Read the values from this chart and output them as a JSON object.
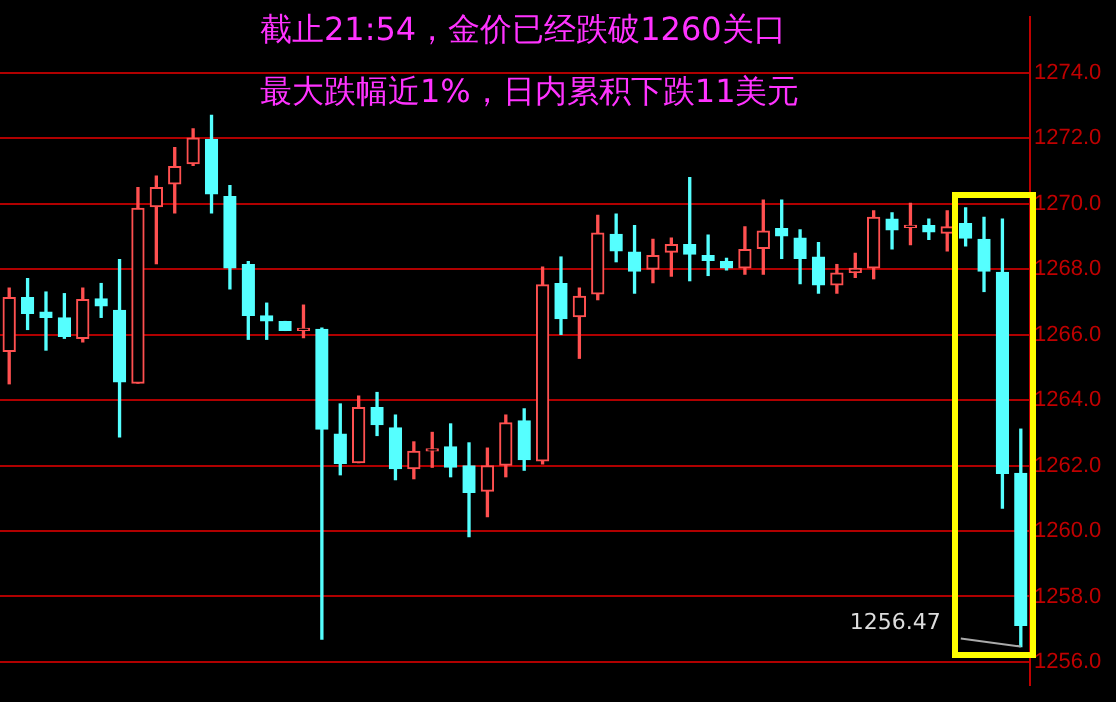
{
  "chart_data": {
    "type": "candlestick",
    "annotations": [
      "截止21:54，金价已经跌破1260关口",
      "最大跌幅近1%，日内累积下跌11美元",
      "1256.47"
    ],
    "categories": [
      null,
      null,
      null,
      null,
      null,
      null,
      null,
      null,
      null,
      null,
      null,
      null,
      null,
      null,
      null,
      null,
      null,
      null,
      null,
      null,
      null,
      null,
      null,
      null,
      null,
      null,
      null,
      null,
      null,
      null,
      null,
      null,
      null,
      null,
      null,
      null,
      null,
      null,
      null,
      null,
      null,
      null,
      null,
      null,
      null,
      null,
      null,
      null,
      null,
      null,
      null,
      null,
      null,
      null,
      null,
      null
    ],
    "ohlc": [
      [
        1265.49,
        1267.42,
        1264.5,
        1267.13
      ],
      [
        1267.13,
        1267.71,
        1266.16,
        1266.65
      ],
      [
        1266.69,
        1267.3,
        1265.53,
        1266.53
      ],
      [
        1266.51,
        1267.25,
        1265.89,
        1265.95
      ],
      [
        1265.89,
        1267.42,
        1265.78,
        1267.07
      ],
      [
        1267.09,
        1267.56,
        1266.53,
        1266.88
      ],
      [
        1266.74,
        1268.29,
        1262.88,
        1264.56
      ],
      [
        1264.52,
        1270.49,
        1264.52,
        1269.86
      ],
      [
        1269.91,
        1270.84,
        1268.17,
        1270.49
      ],
      [
        1270.61,
        1271.71,
        1269.72,
        1271.13
      ],
      [
        1271.23,
        1272.29,
        1271.17,
        1272.0
      ],
      [
        1271.96,
        1272.7,
        1269.72,
        1270.3
      ],
      [
        1270.22,
        1270.55,
        1267.4,
        1268.04
      ],
      [
        1268.14,
        1268.23,
        1265.86,
        1266.59
      ],
      [
        1266.57,
        1266.96,
        1265.86,
        1266.42
      ],
      [
        1266.4,
        1266.4,
        1266.13,
        1266.13
      ],
      [
        1266.13,
        1266.9,
        1265.91,
        1266.15
      ],
      [
        1266.16,
        1266.2,
        1256.7,
        1263.11
      ],
      [
        1262.96,
        1263.88,
        1261.72,
        1262.07
      ],
      [
        1262.09,
        1264.12,
        1262.09,
        1263.77
      ],
      [
        1263.77,
        1264.23,
        1262.92,
        1263.25
      ],
      [
        1263.15,
        1263.54,
        1261.57,
        1261.91
      ],
      [
        1261.91,
        1262.72,
        1261.6,
        1262.43
      ],
      [
        1262.45,
        1263.01,
        1261.95,
        1262.47
      ],
      [
        1262.57,
        1263.27,
        1261.66,
        1261.95
      ],
      [
        1261.99,
        1262.69,
        1259.83,
        1261.18
      ],
      [
        1261.22,
        1262.53,
        1260.44,
        1261.99
      ],
      [
        1262.01,
        1263.54,
        1261.66,
        1263.3
      ],
      [
        1263.36,
        1263.73,
        1261.86,
        1262.18
      ],
      [
        1262.14,
        1268.06,
        1262.05,
        1267.52
      ],
      [
        1267.56,
        1268.37,
        1266.01,
        1266.49
      ],
      [
        1266.55,
        1267.42,
        1265.28,
        1267.17
      ],
      [
        1267.25,
        1269.64,
        1267.07,
        1269.1
      ],
      [
        1269.06,
        1269.68,
        1268.23,
        1268.56
      ],
      [
        1268.52,
        1269.33,
        1267.27,
        1267.94
      ],
      [
        1268.0,
        1268.91,
        1267.59,
        1268.41
      ],
      [
        1268.52,
        1268.95,
        1267.79,
        1268.75
      ],
      [
        1268.75,
        1270.8,
        1267.65,
        1268.46
      ],
      [
        1268.41,
        1269.04,
        1267.81,
        1268.27
      ],
      [
        1268.23,
        1268.33,
        1267.98,
        1268.04
      ],
      [
        1268.04,
        1269.29,
        1267.85,
        1268.6
      ],
      [
        1268.64,
        1270.11,
        1267.85,
        1269.16
      ],
      [
        1269.24,
        1270.11,
        1268.33,
        1269.02
      ],
      [
        1268.95,
        1269.2,
        1267.56,
        1268.33
      ],
      [
        1268.37,
        1268.81,
        1267.27,
        1267.52
      ],
      [
        1267.52,
        1268.14,
        1267.27,
        1267.88
      ],
      [
        1267.9,
        1268.48,
        1267.75,
        1268.02
      ],
      [
        1268.04,
        1269.78,
        1267.71,
        1269.58
      ],
      [
        1269.53,
        1269.72,
        1268.62,
        1269.2
      ],
      [
        1269.28,
        1270.01,
        1268.75,
        1269.3
      ],
      [
        1269.33,
        1269.53,
        1268.91,
        1269.14
      ],
      [
        1269.1,
        1269.78,
        1268.56,
        1269.29
      ],
      [
        1269.39,
        1269.87,
        1268.71,
        1268.95
      ],
      [
        1268.91,
        1269.58,
        1267.32,
        1267.94
      ],
      [
        1267.9,
        1269.53,
        1260.7,
        1261.76
      ],
      [
        1261.76,
        1263.11,
        1256.47,
        1257.12
      ]
    ],
    "colors": [
      "#ff5050",
      "#55ffff",
      "#55ffff",
      "#55ffff",
      "#ff5050",
      "#55ffff",
      "#55ffff",
      "#ff5050",
      "#ff5050",
      "#ff5050",
      "#ff5050",
      "#55ffff",
      "#55ffff",
      "#55ffff",
      "#55ffff",
      "#55ffff",
      "#ff5050",
      "#55ffff",
      "#55ffff",
      "#ff5050",
      "#55ffff",
      "#55ffff",
      "#ff5050",
      "#ff5050",
      "#55ffff",
      "#55ffff",
      "#ff5050",
      "#ff5050",
      "#55ffff",
      "#ff5050",
      "#55ffff",
      "#ff5050",
      "#ff5050",
      "#55ffff",
      "#55ffff",
      "#ff5050",
      "#ff5050",
      "#55ffff",
      "#55ffff",
      "#55ffff",
      "#ff5050",
      "#ff5050",
      "#55ffff",
      "#55ffff",
      "#55ffff",
      "#ff5050",
      "#ff5050",
      "#ff5050",
      "#55ffff",
      "#ff5050",
      "#55ffff",
      "#ff5050",
      "#55ffff",
      "#55ffff",
      "#55ffff",
      "#55ffff"
    ],
    "ylim": [
      1255.3,
      1275.7
    ],
    "yticks": [
      {
        "value": 1256,
        "label": "1256.0"
      },
      {
        "value": 1258,
        "label": "1258.0"
      },
      {
        "value": 1260,
        "label": "1260.0"
      },
      {
        "value": 1262,
        "label": "1262.0"
      },
      {
        "value": 1264,
        "label": "1264.0"
      },
      {
        "value": 1266,
        "label": "1266.0"
      },
      {
        "value": 1268,
        "label": "1268.0"
      },
      {
        "value": 1270,
        "label": "1270.0"
      },
      {
        "value": 1272,
        "label": "1272.0"
      },
      {
        "value": 1274,
        "label": "1274.0"
      }
    ],
    "grid": "y",
    "tick_labels": "y"
  }
}
